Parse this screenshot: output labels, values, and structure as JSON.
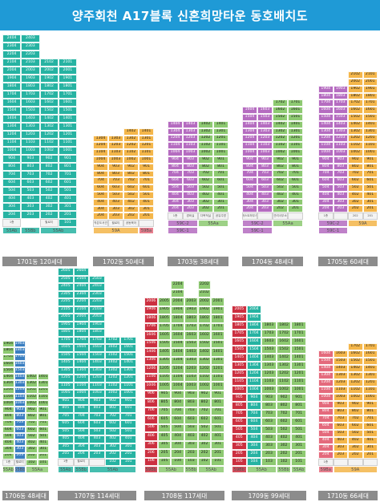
{
  "title": "양주회천 A17블록 신혼희망타운 동호배치도",
  "colors": {
    "header": "#1f9ad6",
    "teal": "#26b3a2",
    "tealDark": "#1e8d93",
    "blue": "#3b7fc1",
    "green": "#8dc971",
    "yellow": "#f4b64a",
    "pink": "#e46a7c",
    "purple": "#b56cc0",
    "redDark": "#cc3040",
    "label": "#8c8c8c",
    "facility": "#f4f4f4"
  },
  "buildings": [
    {
      "id": "1701",
      "label": "1701동 120세대",
      "floors": 24,
      "columns": [
        {
          "color": "teal",
          "bottom": 1,
          "top": 24
        },
        {
          "color": "teal",
          "bottom": 2,
          "top": 24
        },
        {
          "color": "teal",
          "bottom": 1,
          "top": 21
        },
        {
          "color": "teal",
          "bottom": 1,
          "top": 21
        }
      ],
      "facilities": [
        {
          "col": 0,
          "text": "1층"
        },
        {
          "col": 2,
          "text": "필로티"
        }
      ],
      "types": [
        {
          "text": "55Ab",
          "cols": [
            0
          ],
          "color": "teal"
        },
        {
          "text": "55Bb",
          "cols": [
            1
          ],
          "color": "teal"
        },
        {
          "text": "55Ab",
          "cols": [
            2,
            3
          ],
          "color": "teal"
        }
      ]
    },
    {
      "id": "1702",
      "label": "1702동 50세대",
      "floors": 14,
      "columns": [
        {
          "color": "yellow",
          "bottom": 2,
          "top": 13
        },
        {
          "color": "yellow",
          "bottom": 2,
          "top": 13
        },
        {
          "color": "yellow",
          "bottom": 2,
          "top": 14
        },
        {
          "color": "yellow",
          "bottom": 2,
          "top": 14
        }
      ],
      "facilities": [
        {
          "col": 0,
          "text": "작은도서관"
        },
        {
          "col": 1,
          "text": "필로티"
        },
        {
          "col": 2,
          "text": "공동육아"
        },
        {
          "col": 3,
          "text": ""
        }
      ],
      "types": [
        {
          "text": "59A",
          "cols": [
            0,
            1,
            2
          ],
          "color": "yellow"
        },
        {
          "text": "59Ba",
          "cols": [
            3
          ],
          "color": "pink"
        }
      ]
    },
    {
      "id": "1703",
      "label": "1703동 38세대",
      "floors": 14,
      "columns": [
        {
          "color": "purple",
          "bottom": 2,
          "top": 14
        },
        {
          "color": "purple",
          "bottom": 2,
          "top": 14
        },
        {
          "color": "green",
          "bottom": 2,
          "top": 14
        },
        {
          "color": "green",
          "bottom": 2,
          "top": 14
        }
      ],
      "facilities": [
        {
          "col": 0,
          "text": "1층"
        },
        {
          "col": 1,
          "text": "경비실"
        },
        {
          "col": 2,
          "text": "다목적실"
        },
        {
          "col": 3,
          "text": "공유주방"
        }
      ],
      "types": [
        {
          "text": "59C-2",
          "cols": [
            0,
            1
          ],
          "color": "purple"
        },
        {
          "text": "55Aa",
          "cols": [
            2,
            3
          ],
          "color": "green"
        }
      ],
      "types2": [
        {
          "text": "59C-1",
          "cols": [
            0,
            1
          ],
          "color": "purple"
        }
      ]
    },
    {
      "id": "1704",
      "label": "1704동 48세대",
      "floors": 17,
      "columns": [
        {
          "color": "purple",
          "bottom": 2,
          "top": 16
        },
        {
          "color": "purple",
          "bottom": 2,
          "top": 16
        },
        {
          "color": "green",
          "bottom": 2,
          "top": 17
        },
        {
          "color": "green",
          "bottom": 2,
          "top": 17
        }
      ],
      "facilities": [
        {
          "col": 0,
          "text": "게스트하우스"
        },
        {
          "col": 1,
          "text": ""
        },
        {
          "col": 2,
          "text": "관리사무소"
        },
        {
          "col": 3,
          "text": ""
        }
      ],
      "types": [
        {
          "text": "59C-2",
          "cols": [
            0,
            1
          ],
          "color": "purple"
        },
        {
          "text": "55Aa",
          "cols": [
            2,
            3
          ],
          "color": "green"
        }
      ],
      "types2": [
        {
          "text": "59C-1",
          "cols": [
            0,
            1
          ],
          "color": "purple"
        }
      ]
    },
    {
      "id": "1705",
      "label": "1705동 60세대",
      "floors": 21,
      "columns": [
        {
          "color": "purple",
          "bottom": 2,
          "top": 19
        },
        {
          "color": "purple",
          "bottom": 2,
          "top": 19
        },
        {
          "color": "yellow",
          "bottom": 2,
          "top": 21
        },
        {
          "color": "yellow",
          "bottom": 2,
          "top": 21
        }
      ],
      "facilities": [
        {
          "col": 0,
          "text": "1층"
        },
        {
          "col": 1,
          "text": ""
        },
        {
          "col": 2,
          "text": "202"
        },
        {
          "col": 3,
          "text": "201"
        }
      ],
      "types": [
        {
          "text": "59C-2",
          "cols": [
            0,
            1
          ],
          "color": "purple"
        },
        {
          "text": "59A",
          "cols": [
            2,
            3
          ],
          "color": "yellow"
        }
      ],
      "types2": [
        {
          "text": "59C-1",
          "cols": [
            0,
            1
          ],
          "color": "purple"
        }
      ]
    },
    {
      "id": "1706",
      "label": "1706동 48세대",
      "floors": 19,
      "columns": [
        {
          "color": "green",
          "bottom": 2,
          "top": 19
        },
        {
          "color": "blue",
          "bottom": 2,
          "top": 19
        },
        {
          "color": "green",
          "bottom": 1,
          "top": 14
        },
        {
          "color": "green",
          "bottom": 1,
          "top": 14
        }
      ],
      "facilities": [
        {
          "col": 0,
          "text": "1층"
        },
        {
          "col": 1,
          "text": "필로티"
        }
      ],
      "types": [
        {
          "text": "55Ab",
          "cols": [
            0
          ],
          "color": "green"
        },
        {
          "text": "55Bb",
          "cols": [
            1
          ],
          "color": "blue"
        },
        {
          "text": "55Aa",
          "cols": [
            2,
            3
          ],
          "color": "green"
        }
      ]
    },
    {
      "id": "1707",
      "label": "1707동 114세대",
      "floors": 26,
      "columns": [
        {
          "color": "teal",
          "bottom": 2,
          "top": 26
        },
        {
          "color": "teal",
          "bottom": 2,
          "top": 26
        },
        {
          "color": "teal",
          "bottom": 2,
          "top": 25
        },
        {
          "color": "teal",
          "bottom": 1,
          "top": 17
        },
        {
          "color": "teal",
          "bottom": 1,
          "top": 17
        }
      ],
      "facilities": [
        {
          "col": 0,
          "text": "1층"
        },
        {
          "col": 1,
          "text": "필로티"
        },
        {
          "col": 2,
          "text": ""
        }
      ],
      "types": [
        {
          "text": "55Ab",
          "cols": [
            0
          ],
          "color": "teal"
        },
        {
          "text": "55Bb",
          "cols": [
            1
          ],
          "color": "teal"
        },
        {
          "text": "55Ab",
          "cols": [
            2,
            3,
            4
          ],
          "color": "teal"
        }
      ]
    },
    {
      "id": "1708",
      "label": "1708동 117세대",
      "floors": 22,
      "columns": [
        {
          "color": "redDark",
          "bottom": 1,
          "top": 20
        },
        {
          "color": "green",
          "bottom": 1,
          "top": 20
        },
        {
          "color": "green",
          "bottom": 1,
          "top": 22
        },
        {
          "color": "green",
          "bottom": 1,
          "top": 20
        },
        {
          "color": "green",
          "bottom": 1,
          "top": 22
        },
        {
          "color": "green",
          "bottom": 1,
          "top": 20
        }
      ],
      "facilities": [],
      "types": [
        {
          "text": "59Bb",
          "cols": [
            0
          ],
          "color": "redDark"
        },
        {
          "text": "55Ab",
          "cols": [
            1,
            2
          ],
          "color": "green"
        },
        {
          "text": "55Bb",
          "cols": [
            3
          ],
          "color": "green"
        },
        {
          "text": "55Ab",
          "cols": [
            4,
            5
          ],
          "color": "green"
        }
      ]
    },
    {
      "id": "1709",
      "label": "1709동 99세대",
      "floors": 20,
      "columns": [
        {
          "color": "redDark",
          "bottom": 1,
          "top": 20
        },
        {
          "color": "teal",
          "bottom": 1,
          "top": 20
        },
        {
          "color": "green",
          "bottom": 1,
          "top": 18
        },
        {
          "color": "green",
          "bottom": 1,
          "top": 18
        },
        {
          "color": "green",
          "bottom": 1,
          "top": 18
        }
      ],
      "facilities": [],
      "types": [
        {
          "text": "59Bb",
          "cols": [
            0
          ],
          "color": "redDark"
        },
        {
          "text": "55Ab",
          "cols": [
            1,
            2
          ],
          "color": "green"
        },
        {
          "text": "55Bb",
          "cols": [
            3
          ],
          "color": "green"
        },
        {
          "text": "55Ab",
          "cols": [
            4
          ],
          "color": "green"
        }
      ]
    },
    {
      "id": "1710",
      "label": "1710동 66세대",
      "floors": 17,
      "columns": [
        {
          "color": "pink",
          "bottom": 2,
          "top": 16
        },
        {
          "color": "yellow",
          "bottom": 2,
          "top": 16
        },
        {
          "color": "yellow",
          "bottom": 2,
          "top": 17
        },
        {
          "color": "yellow",
          "bottom": 2,
          "top": 17
        }
      ],
      "facilities": [
        {
          "col": 0,
          "text": "1층"
        },
        {
          "col": 1,
          "text": ""
        },
        {
          "col": 2,
          "text": ""
        },
        {
          "col": 3,
          "text": ""
        }
      ],
      "types": [
        {
          "text": "59Ba",
          "cols": [
            0
          ],
          "color": "pink"
        },
        {
          "text": "59A",
          "cols": [
            1,
            2,
            3
          ],
          "color": "yellow"
        }
      ]
    }
  ]
}
